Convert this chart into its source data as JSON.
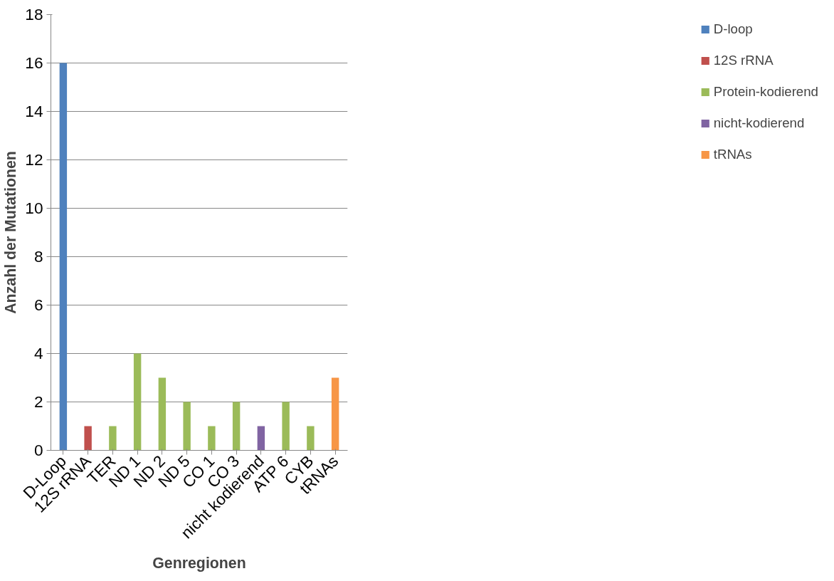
{
  "chart_data": {
    "type": "bar",
    "stacked": true,
    "xlabel": "Genregionen",
    "ylabel": "Anzahl der Mutationen",
    "categories": [
      "D-Loop",
      "12S rRNA",
      "TER",
      "ND 1",
      "ND 2",
      "ND 5",
      "CO 1",
      "CO 3",
      "nicht kodierend",
      "ATP 6",
      "CYB",
      "tRNAs"
    ],
    "series": [
      {
        "name": "D-loop",
        "color": "#4f81bd",
        "values": [
          16,
          null,
          null,
          null,
          null,
          null,
          null,
          null,
          null,
          null,
          null,
          null
        ]
      },
      {
        "name": "12S rRNA",
        "color": "#c0504d",
        "values": [
          null,
          1,
          null,
          null,
          null,
          null,
          null,
          null,
          null,
          null,
          null,
          null
        ]
      },
      {
        "name": "Protein-kodierend",
        "color": "#9bbb59",
        "values": [
          null,
          null,
          1,
          4,
          3,
          2,
          1,
          2,
          null,
          2,
          1,
          null
        ]
      },
      {
        "name": "nicht-kodierend",
        "color": "#8064a2",
        "values": [
          null,
          null,
          null,
          null,
          null,
          null,
          null,
          null,
          1,
          null,
          null,
          null
        ]
      },
      {
        "name": "tRNAs",
        "color": "#f79646",
        "values": [
          null,
          null,
          null,
          null,
          null,
          null,
          null,
          null,
          null,
          null,
          null,
          3
        ]
      }
    ],
    "ylim": [
      0,
      18
    ],
    "yticks": [
      0,
      2,
      4,
      6,
      8,
      10,
      12,
      14,
      16,
      18
    ],
    "grid": "y",
    "legend": "right"
  }
}
